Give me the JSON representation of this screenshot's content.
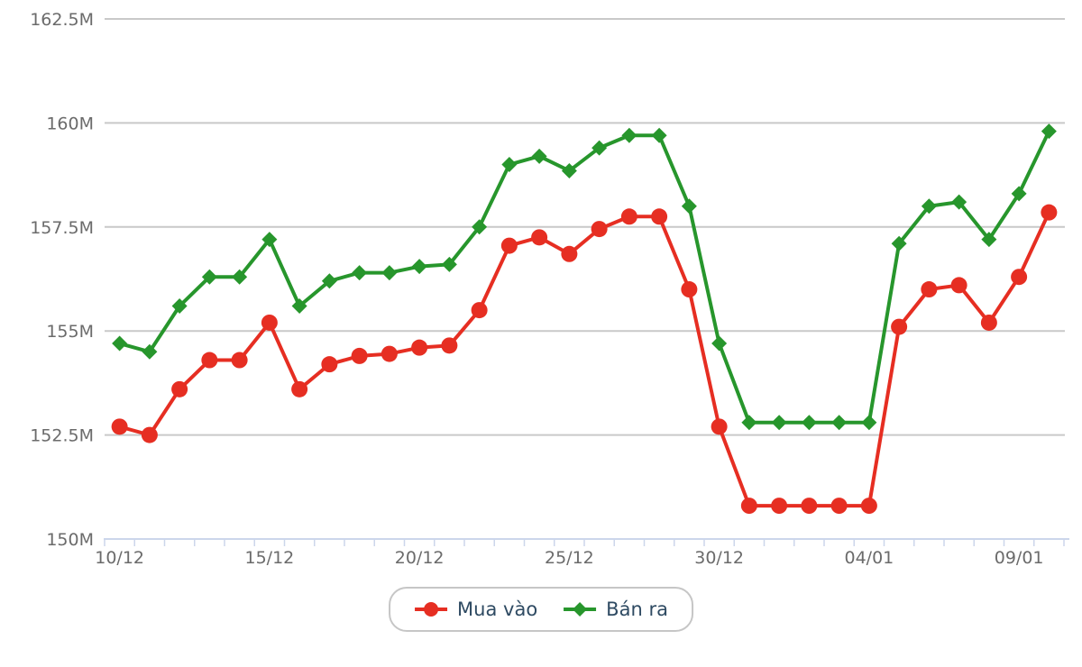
{
  "chart_data": {
    "type": "line",
    "title": "",
    "xlabel": "",
    "ylabel": "",
    "ylim": [
      150,
      162.5
    ],
    "grid": true,
    "legend_position": "bottom-center",
    "num_points": 32,
    "y_tick_labels": [
      "150M",
      "152.5M",
      "155M",
      "157.5M",
      "160M",
      "162.5M"
    ],
    "y_tick_values": [
      150,
      152.5,
      155,
      157.5,
      160,
      162.5
    ],
    "x_tick_labels": [
      "10/12",
      "15/12",
      "20/12",
      "25/12",
      "30/12",
      "04/01",
      "09/01"
    ],
    "x_tick_point_indices": [
      0,
      5,
      10,
      15,
      20,
      25,
      30
    ],
    "series": [
      {
        "name": "Mua vào",
        "marker": "circle",
        "color": "#e62e22",
        "values": [
          152.7,
          152.5,
          153.6,
          154.3,
          154.3,
          155.2,
          153.6,
          154.2,
          154.4,
          154.45,
          154.6,
          154.65,
          155.5,
          157.05,
          157.25,
          156.85,
          157.45,
          157.75,
          157.75,
          156.0,
          152.7,
          150.8,
          150.8,
          150.8,
          150.8,
          150.8,
          155.1,
          156.0,
          156.1,
          155.2,
          156.3,
          157.85
        ]
      },
      {
        "name": "Bán ra",
        "marker": "diamond",
        "color": "#27962c",
        "values": [
          154.7,
          154.5,
          155.6,
          156.3,
          156.3,
          157.2,
          155.6,
          156.2,
          156.4,
          156.4,
          156.55,
          156.6,
          157.5,
          159.0,
          159.2,
          158.85,
          159.4,
          159.7,
          159.7,
          158.0,
          154.7,
          152.8,
          152.8,
          152.8,
          152.8,
          152.8,
          157.1,
          158.0,
          158.1,
          157.2,
          158.3,
          159.8
        ]
      }
    ]
  },
  "styles": {
    "background": "#ffffff",
    "gridline_color": "#c9c9c9",
    "axis_line_color": "#ccd6eb",
    "tick_color": "#ccd6eb",
    "axis_label_color": "#6b6b6b",
    "legend_text_color": "#2e4a62",
    "legend_border_color": "#c6c6c6",
    "series_line_width": 4
  }
}
